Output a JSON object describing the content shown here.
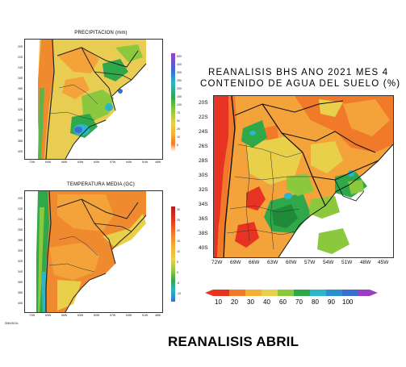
{
  "precip_panel": {
    "title": "PRECIPITACION (mm)",
    "lat_ticks": [
      "20S",
      "22S",
      "24S",
      "26S",
      "28S",
      "30S",
      "32S",
      "34S",
      "36S",
      "38S",
      "40S"
    ],
    "lon_ticks": [
      "72W",
      "69W",
      "66W",
      "63W",
      "60W",
      "57W",
      "54W",
      "51W",
      "48W"
    ],
    "colorbar_ticks": [
      "500",
      "400",
      "300",
      "250",
      "200",
      "150",
      "100",
      "75",
      "50",
      "25",
      "10",
      "5"
    ]
  },
  "temp_panel": {
    "title": "TEMPERATURA MEDIA (GC)",
    "lat_ticks": [
      "20S",
      "22S",
      "24S",
      "26S",
      "28S",
      "30S",
      "32S",
      "34S",
      "36S",
      "38S",
      "40S"
    ],
    "lon_ticks": [
      "72W",
      "69W",
      "66W",
      "63W",
      "60W",
      "57W",
      "54W",
      "51W",
      "48W"
    ],
    "colorbar_ticks": [
      "30",
      "25",
      "20",
      "15",
      "10",
      "5",
      "0",
      "-5",
      "-10"
    ],
    "credit": "SMN/DGA"
  },
  "soil_panel": {
    "title_line1": "REANALISIS BHS ANO 2021 MES 4",
    "title_line2": "CONTENIDO DE AGUA DEL SUELO (%)",
    "lat_ticks": [
      "20S",
      "22S",
      "24S",
      "26S",
      "28S",
      "30S",
      "32S",
      "34S",
      "36S",
      "38S",
      "40S"
    ],
    "lon_ticks": [
      "72W",
      "69W",
      "66W",
      "63W",
      "60W",
      "57W",
      "54W",
      "51W",
      "48W",
      "45W"
    ],
    "colorbar_ticks": [
      "10",
      "20",
      "30",
      "40",
      "60",
      "70",
      "80",
      "90",
      "100"
    ],
    "colors": {
      "very_dry": "#e63322",
      "dry": "#f07a2a",
      "semi_dry": "#f5b135",
      "mid": "#e9d04a",
      "moist": "#8cc83e",
      "wet": "#2fa84a",
      "very_wet": "#2bb6c9",
      "saturated": "#3a6fd0",
      "max": "#9a3fc4"
    }
  },
  "footer": {
    "caption": "REANALISIS ABRIL"
  }
}
